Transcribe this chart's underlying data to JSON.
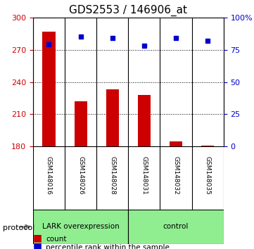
{
  "title": "GDS2553 / 146906_at",
  "samples": [
    "GSM148016",
    "GSM148026",
    "GSM148028",
    "GSM148031",
    "GSM148032",
    "GSM148035"
  ],
  "counts": [
    287,
    222,
    233,
    228,
    185,
    181
  ],
  "percentile_ranks": [
    79,
    85,
    84,
    78,
    84,
    82
  ],
  "groups": [
    "LARK overexpression",
    "LARK overexpression",
    "LARK overexpression",
    "control",
    "control",
    "control"
  ],
  "group_labels": [
    "LARK overexpression",
    "control"
  ],
  "group_colors": [
    "#90ee90",
    "#90ee90"
  ],
  "bar_color": "#cc0000",
  "dot_color": "#0000cc",
  "ylim_left": [
    180,
    300
  ],
  "ylim_right": [
    0,
    100
  ],
  "yticks_left": [
    180,
    210,
    240,
    270,
    300
  ],
  "yticks_right": [
    0,
    25,
    50,
    75,
    100
  ],
  "ytick_labels_right": [
    "0",
    "25",
    "50",
    "75",
    "100%"
  ],
  "grid_color": "#000000",
  "bg_color": "#f0f0f0",
  "plot_bg": "#ffffff",
  "xlabel_fontsize": 7,
  "title_fontsize": 11,
  "bar_width": 0.4
}
